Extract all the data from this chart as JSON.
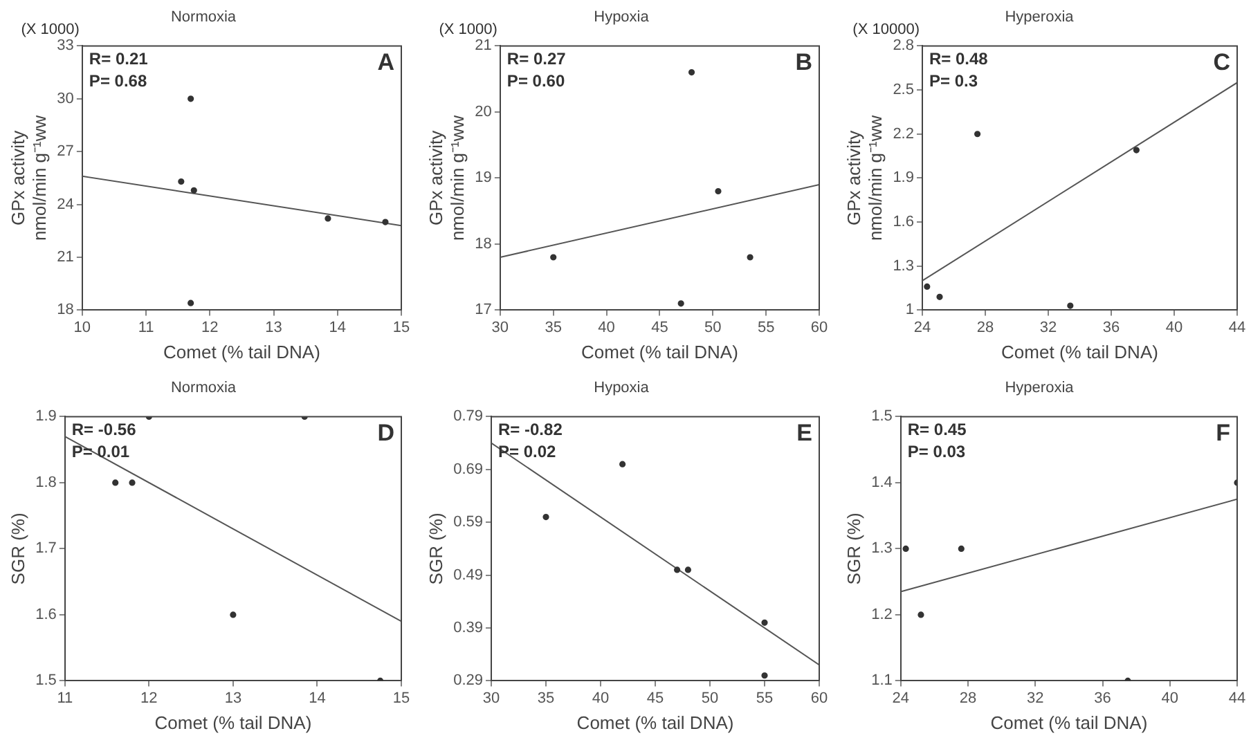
{
  "chart_data": [
    {
      "type": "scatter",
      "title": "Normoxia",
      "xlabel": "Comet (% tail DNA)",
      "ylabel": "GPx activity\nnmol/min g⁻¹ww",
      "xlim": [
        10,
        15
      ],
      "xticks": [
        10,
        11,
        12,
        13,
        14,
        15
      ],
      "ylim": [
        18,
        33
      ],
      "yticks": [
        18,
        21,
        24,
        27,
        30,
        33
      ],
      "annotations": [
        "A",
        "R= 0.21",
        "P= 0.68",
        "(X 1000)"
      ],
      "series": [
        {
          "color": "#333333",
          "marker": "circle",
          "x": [
            11.55,
            11.75,
            13.85,
            14.75,
            11.7,
            11.7
          ],
          "values": [
            25.3,
            24.8,
            23.2,
            23.0,
            30.0,
            18.4
          ]
        },
        {
          "type": "line",
          "marker": "none",
          "color": "#555555",
          "x": [
            10,
            15
          ],
          "values": [
            25.6,
            22.8
          ]
        }
      ]
    },
    {
      "type": "scatter",
      "title": "Hypoxia",
      "xlabel": "Comet (% tail DNA)",
      "ylabel": "GPx activity\nnmol/min g⁻¹ww",
      "xlim": [
        30,
        60
      ],
      "xticks": [
        30,
        35,
        40,
        45,
        50,
        55,
        60
      ],
      "ylim": [
        17,
        21
      ],
      "yticks": [
        17,
        18,
        19,
        20,
        21
      ],
      "annotations": [
        "B",
        "R= 0.27",
        "P= 0.60",
        "(X 1000)"
      ],
      "series": [
        {
          "color": "#333333",
          "marker": "circle",
          "x": [
            35,
            47,
            48,
            50.5,
            53.5
          ],
          "values": [
            17.8,
            17.1,
            20.6,
            18.8,
            17.8
          ]
        },
        {
          "type": "line",
          "marker": "none",
          "color": "#555555",
          "x": [
            30,
            60
          ],
          "values": [
            17.8,
            18.9
          ]
        }
      ]
    },
    {
      "type": "scatter",
      "title": "Hyperoxia",
      "xlabel": "Comet (% tail DNA)",
      "ylabel": "GPx activity\nnmol/min g⁻¹ww",
      "xlim": [
        24,
        44
      ],
      "xticks": [
        24,
        28,
        32,
        36,
        40,
        44
      ],
      "ylim": [
        1,
        2.8
      ],
      "yticks": [
        1,
        1.3,
        1.6,
        1.9,
        2.2,
        2.5,
        2.8
      ],
      "annotations": [
        "C",
        "R= 0.48",
        "P= 0.3",
        "(X 10000)"
      ],
      "series": [
        {
          "color": "#333333",
          "marker": "circle",
          "x": [
            24.3,
            25.1,
            27.5,
            33.4,
            37.6
          ],
          "values": [
            1.16,
            1.09,
            2.2,
            1.03,
            2.09
          ]
        },
        {
          "type": "line",
          "marker": "none",
          "color": "#555555",
          "x": [
            24,
            44
          ],
          "values": [
            1.2,
            2.55
          ]
        }
      ]
    },
    {
      "type": "scatter",
      "title": "Normoxia",
      "xlabel": "Comet (% tail DNA)",
      "ylabel": "SGR (%)",
      "xlim": [
        11,
        15
      ],
      "xticks": [
        11,
        12,
        13,
        14,
        15
      ],
      "ylim": [
        1.5,
        1.9
      ],
      "yticks": [
        1.5,
        1.6,
        1.7,
        1.8,
        1.9
      ],
      "annotations": [
        "D",
        "R= -0.56",
        "P= 0.01"
      ],
      "series": [
        {
          "color": "#333333",
          "marker": "circle",
          "x": [
            11.6,
            11.8,
            12.0,
            13.0,
            13.85,
            14.75
          ],
          "values": [
            1.8,
            1.8,
            1.9,
            1.6,
            1.9,
            1.5
          ]
        },
        {
          "type": "line",
          "marker": "none",
          "color": "#555555",
          "x": [
            11,
            15
          ],
          "values": [
            1.87,
            1.59
          ]
        }
      ]
    },
    {
      "type": "scatter",
      "title": "Hypoxia",
      "xlabel": "Comet (% tail DNA)",
      "ylabel": "SGR (%)",
      "xlim": [
        30,
        60
      ],
      "xticks": [
        30,
        35,
        40,
        45,
        50,
        55,
        60
      ],
      "ylim": [
        0.29,
        0.79
      ],
      "yticks": [
        0.29,
        0.39,
        0.49,
        0.59,
        0.69,
        0.79
      ],
      "annotations": [
        "E",
        "R= -0.82",
        "P= 0.02"
      ],
      "series": [
        {
          "color": "#333333",
          "marker": "circle",
          "x": [
            35,
            42,
            47,
            48,
            55,
            55
          ],
          "values": [
            0.6,
            0.7,
            0.5,
            0.5,
            0.4,
            0.3
          ]
        },
        {
          "type": "line",
          "marker": "none",
          "color": "#555555",
          "x": [
            30,
            60
          ],
          "values": [
            0.74,
            0.32
          ]
        }
      ]
    },
    {
      "type": "scatter",
      "title": "Hyperoxia",
      "xlabel": "Comet (% tail DNA)",
      "ylabel": "SGR (%)",
      "xlim": [
        24,
        44
      ],
      "xticks": [
        24,
        28,
        32,
        36,
        40,
        44
      ],
      "ylim": [
        1.1,
        1.5
      ],
      "yticks": [
        1.1,
        1.2,
        1.3,
        1.4,
        1.5
      ],
      "annotations": [
        "F",
        "R= 0.45",
        "P= 0.03"
      ],
      "series": [
        {
          "color": "#333333",
          "marker": "circle",
          "x": [
            24.3,
            25.2,
            27.6,
            37.5,
            44
          ],
          "values": [
            1.3,
            1.2,
            1.3,
            1.1,
            1.4
          ]
        },
        {
          "type": "line",
          "marker": "none",
          "color": "#555555",
          "x": [
            24,
            44
          ],
          "values": [
            1.235,
            1.375
          ]
        }
      ]
    }
  ]
}
